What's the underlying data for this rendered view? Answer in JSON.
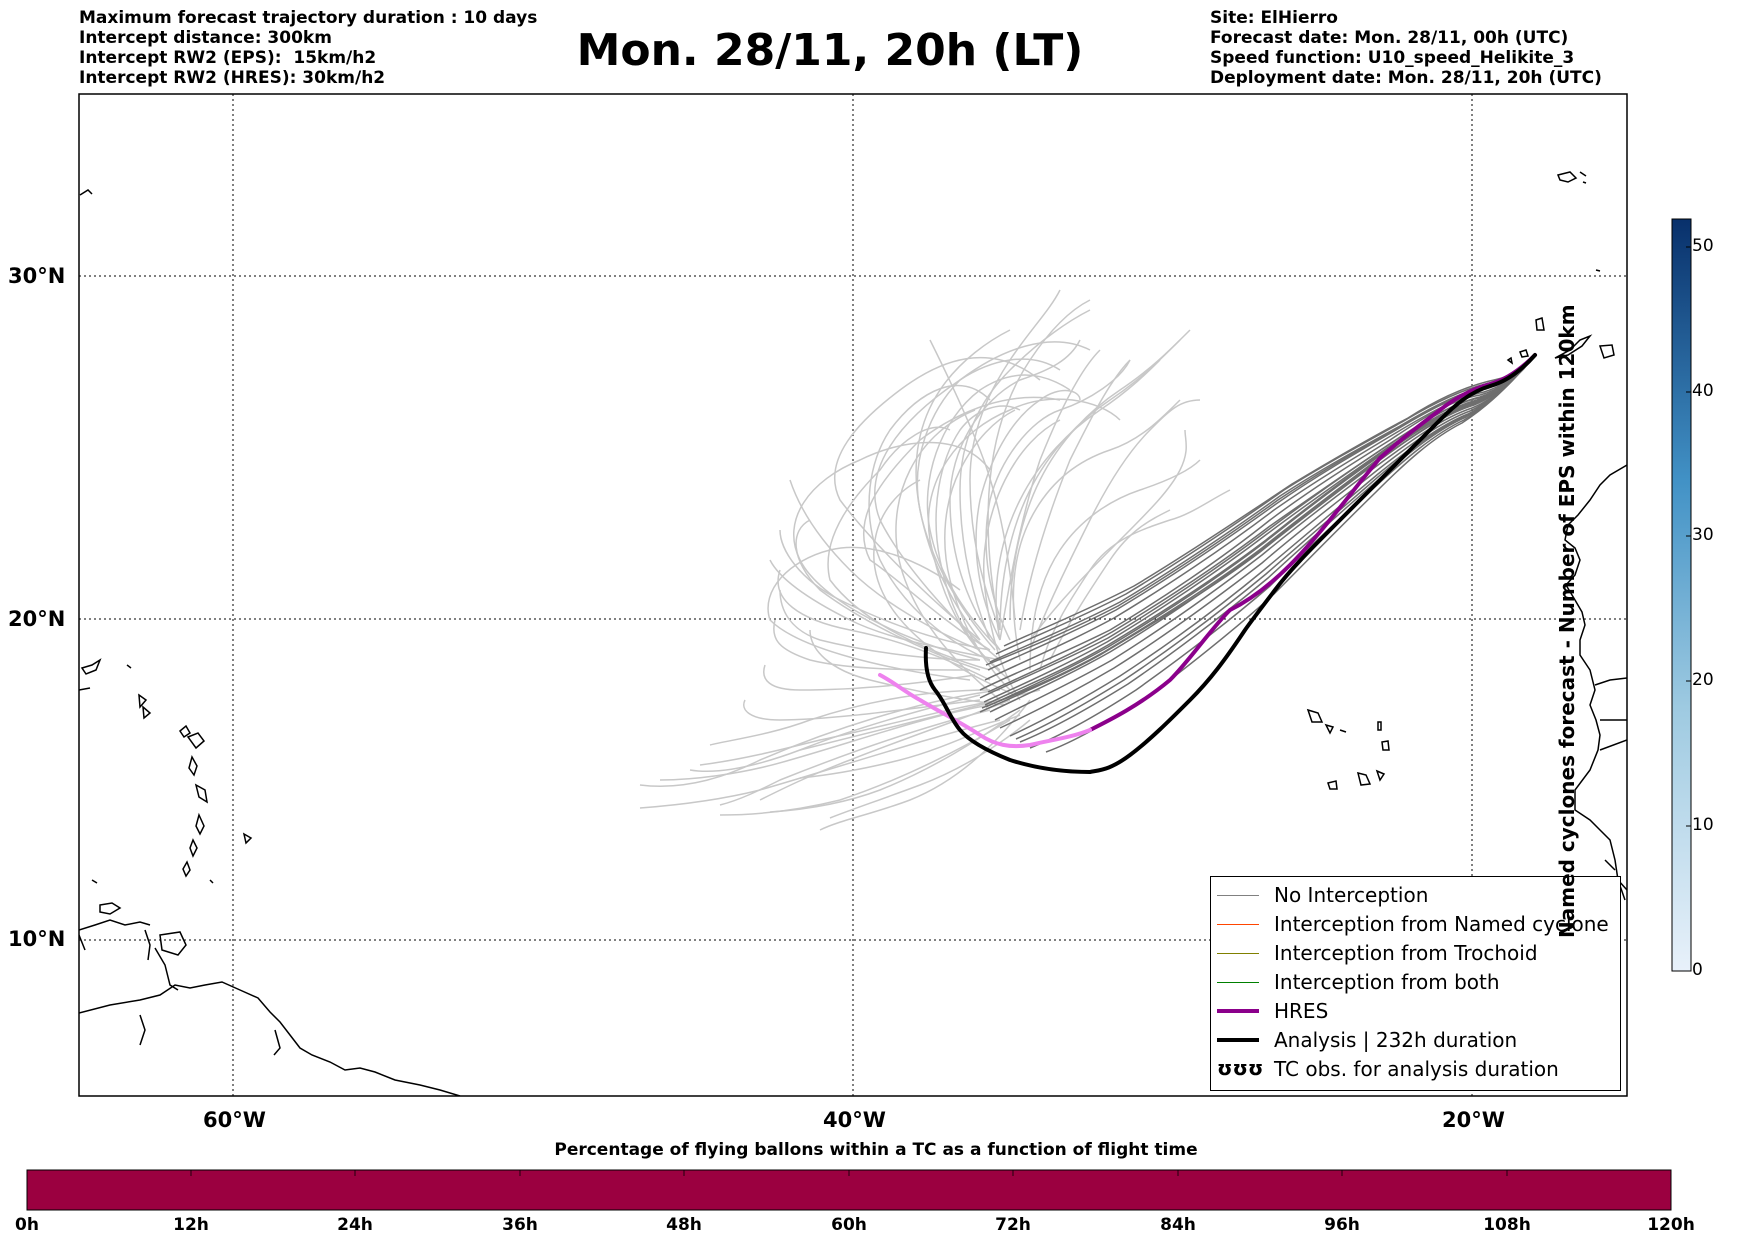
{
  "header_left": [
    "Maximum forecast trajectory duration : 10 days",
    "Intercept distance: 300km",
    "Intercept RW2 (EPS):  15km/h2",
    "Intercept RW2 (HRES): 30km/h2"
  ],
  "title": "Mon. 28/11, 20h (LT)",
  "header_right": [
    "Site: ElHierro",
    "Forecast date: Mon. 28/11, 00h (UTC)",
    "Speed function: U10_speed_Helikite_3",
    "Deployment date: Mon. 28/11, 20h (UTC)"
  ],
  "map": {
    "lat_labels": [
      "30°N",
      "20°N",
      "10°N"
    ],
    "lon_labels": [
      "60°W",
      "40°W",
      "20°W"
    ],
    "grid": "dotted",
    "colors": {
      "eps_forecast": "#6e6e6e",
      "eps_light": "#c8c8c8",
      "hres": "#8b008b",
      "hres_early": "#ee82ee",
      "analysis": "#000000"
    }
  },
  "legend": {
    "items": [
      {
        "label": "No Interception",
        "color": "#808080",
        "style": "thin"
      },
      {
        "label": "Interception from Named cyclone",
        "color": "#ff4500",
        "style": "thin"
      },
      {
        "label": "Interception from Trochoid",
        "color": "#808000",
        "style": "thin"
      },
      {
        "label": "Interception from both",
        "color": "#008000",
        "style": "thin"
      },
      {
        "label": "HRES",
        "color": "#8b008b",
        "style": "thick"
      },
      {
        "label": "Analysis | 232h duration",
        "color": "#000000",
        "style": "thick"
      },
      {
        "label": "TC obs. for analysis duration",
        "color": "#000000",
        "style": "symbol",
        "symbol": "ʊʊʊ"
      }
    ]
  },
  "colorbar_right": {
    "label": "Named cyclones forecast - Number of EPS within 120km",
    "ticks": [
      "50",
      "40",
      "30",
      "20",
      "10",
      "0"
    ]
  },
  "colorbar_bottom": {
    "title": "Percentage of flying ballons within a TC as a function of flight time",
    "ticks": [
      "0h",
      "12h",
      "24h",
      "36h",
      "48h",
      "60h",
      "72h",
      "84h",
      "96h",
      "108h",
      "120h"
    ],
    "fill_color": "#9b0040"
  }
}
